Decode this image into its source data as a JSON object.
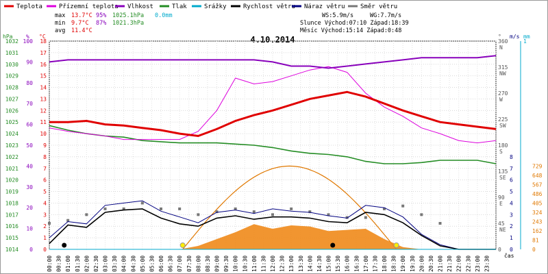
{
  "chart_data": {
    "type": "line",
    "title": "4.10.2014",
    "legend": [
      {
        "name": "Teplota",
        "color": "#e00000"
      },
      {
        "name": "Přízemní teplota",
        "color": "#dd00dd"
      },
      {
        "name": "Vlhkost",
        "color": "#8800bb"
      },
      {
        "name": "Tlak",
        "color": "#238c23"
      },
      {
        "name": "Srážky",
        "color": "#00aacc"
      },
      {
        "name": "Rychlost větru",
        "color": "#000000"
      },
      {
        "name": "Náraz větru",
        "color": "#000080"
      },
      {
        "name": "Směr větru",
        "color": "#777777"
      }
    ],
    "stats": {
      "max_label": "max",
      "min_label": "min",
      "avg_label": "avg",
      "max_temp": "13.7°C",
      "max_hum": "95%",
      "max_press": "1025.1hPa",
      "max_rain": "0.0mm",
      "min_temp": "9.7°C",
      "min_hum": "87%",
      "min_press": "1021.3hPa",
      "avg_temp": "11.4°C",
      "ws": "WS:5.9m/s",
      "wg": "WG:7.7m/s",
      "sun": "Slunce Východ:07:10  Západ:18:39",
      "moon": "Měsíc  Východ:15:14  Západ:0:48"
    },
    "axes": {
      "hpa_label": "hPa",
      "pct_label": "%",
      "c_label": "°C",
      "deg_label": "°",
      "ms_label": "m/s",
      "mm_label": "mm",
      "cas_label": "čas",
      "hpa_ticks": [
        "1032",
        "1031",
        "1030",
        "1029",
        "1028",
        "1027",
        "1026",
        "1025",
        "1024",
        "1023",
        "1022",
        "1021",
        "1020",
        "1019",
        "1018",
        "1017",
        "1016",
        "1015",
        "1014"
      ],
      "pct_ticks": [
        "100",
        "90",
        "80",
        "70",
        "60",
        "50",
        "40",
        "30",
        "20",
        "10",
        "0"
      ],
      "c_ticks": [
        "18",
        "17",
        "16",
        "15",
        "14",
        "13",
        "12",
        "11",
        "10",
        "9",
        "8",
        "7",
        "6",
        "5",
        "4",
        "3",
        "2",
        "1",
        "0"
      ],
      "deg_ticks": [
        "360",
        "315",
        "270",
        "225",
        "180",
        "135",
        "90",
        "45",
        "0"
      ],
      "compass_ticks": [
        "N",
        "NW",
        "W",
        "SW",
        "S",
        "SE",
        "E",
        "NE"
      ],
      "ms_ticks": [
        "8",
        "7",
        "6",
        "5",
        "4",
        "3",
        "2",
        "1",
        "0"
      ],
      "mm_top": "1",
      "solar_ticks": [
        "729",
        "648",
        "567",
        "486",
        "405",
        "324",
        "243",
        "162",
        "81",
        "0"
      ],
      "time_ticks": [
        "00:00",
        "00:30",
        "01:00",
        "01:30",
        "02:00",
        "02:30",
        "03:00",
        "03:30",
        "04:00",
        "04:30",
        "05:00",
        "05:30",
        "06:00",
        "06:30",
        "07:00",
        "07:30",
        "08:00",
        "08:30",
        "09:00",
        "09:30",
        "10:00",
        "10:30",
        "11:00",
        "11:30",
        "12:00",
        "12:30",
        "13:00",
        "13:30",
        "14:00",
        "14:30",
        "15:00",
        "15:30",
        "16:00",
        "16:30",
        "17:00",
        "17:30",
        "18:00",
        "18:30",
        "19:00",
        "19:30",
        "20:00",
        "20:30",
        "21:00",
        "21:30",
        "22:00",
        "22:30",
        "23:00",
        "23:30"
      ]
    },
    "series": {
      "hours": [
        0,
        1,
        2,
        3,
        4,
        5,
        6,
        7,
        8,
        9,
        10,
        11,
        12,
        13,
        14,
        15,
        16,
        17,
        18,
        19,
        20,
        21,
        22,
        23,
        24
      ],
      "temperature": [
        11.0,
        11.0,
        11.1,
        10.8,
        10.7,
        10.5,
        10.3,
        10.0,
        9.8,
        10.4,
        11.1,
        11.6,
        12.0,
        12.5,
        13.0,
        13.3,
        13.6,
        13.2,
        12.6,
        12.0,
        11.5,
        11.0,
        10.8,
        10.6,
        10.4
      ],
      "ground_temperature": [
        10.5,
        10.2,
        10.0,
        9.8,
        9.5,
        9.5,
        9.5,
        9.5,
        10.2,
        12.0,
        14.8,
        14.3,
        14.5,
        15.0,
        15.5,
        15.8,
        15.3,
        13.5,
        12.3,
        11.5,
        10.5,
        10.0,
        9.4,
        9.2,
        9.4
      ],
      "humidity": [
        90,
        91,
        91,
        91,
        91,
        91,
        91,
        91,
        91,
        91,
        91,
        91,
        90,
        88,
        88,
        87,
        88,
        89,
        90,
        91,
        92,
        92,
        92,
        92,
        93
      ],
      "pressure": [
        1024.7,
        1024.3,
        1024.0,
        1023.8,
        1023.7,
        1023.4,
        1023.3,
        1023.2,
        1023.2,
        1023.2,
        1023.1,
        1023.0,
        1022.8,
        1022.5,
        1022.3,
        1022.2,
        1022.0,
        1021.6,
        1021.4,
        1021.4,
        1021.5,
        1021.7,
        1021.7,
        1021.7,
        1021.4
      ],
      "wind_speed": [
        0.5,
        2.1,
        1.9,
        3.2,
        3.4,
        3.5,
        2.7,
        2.2,
        2.0,
        2.7,
        2.9,
        2.6,
        2.8,
        2.8,
        2.7,
        2.4,
        2.3,
        3.2,
        3.0,
        2.3,
        1.2,
        0.3,
        0,
        0,
        0
      ],
      "wind_gust": [
        1.0,
        2.4,
        2.2,
        3.8,
        4.0,
        4.2,
        3.3,
        2.8,
        2.3,
        3.2,
        3.4,
        3.1,
        3.5,
        3.3,
        3.2,
        2.9,
        2.7,
        3.8,
        3.6,
        2.8,
        1.3,
        0.4,
        0,
        0,
        0
      ],
      "wind_direction": [
        45,
        50,
        60,
        70,
        70,
        80,
        70,
        70,
        60,
        65,
        70,
        65,
        60,
        70,
        65,
        60,
        55,
        55,
        70,
        75,
        60,
        45,
        45,
        45,
        45
      ],
      "solar": [
        0,
        0,
        0,
        0,
        0,
        0,
        0,
        0,
        30,
        90,
        150,
        220,
        180,
        210,
        200,
        160,
        170,
        180,
        90,
        20,
        0,
        0,
        0,
        0,
        0
      ],
      "solar_theory_max": 729,
      "rain": [
        0,
        0,
        0,
        0,
        0,
        0,
        0,
        0,
        0,
        0,
        0,
        0,
        0,
        0,
        0,
        0,
        0,
        0,
        0,
        0,
        0,
        0,
        0,
        0,
        0
      ]
    },
    "ranges": {
      "temp": [
        0,
        18
      ],
      "hum": [
        0,
        100
      ],
      "press": [
        1014,
        1032
      ],
      "wind": [
        0,
        8
      ],
      "dir": [
        0,
        360
      ],
      "solar": [
        0,
        810
      ],
      "x": [
        0,
        24
      ]
    }
  }
}
